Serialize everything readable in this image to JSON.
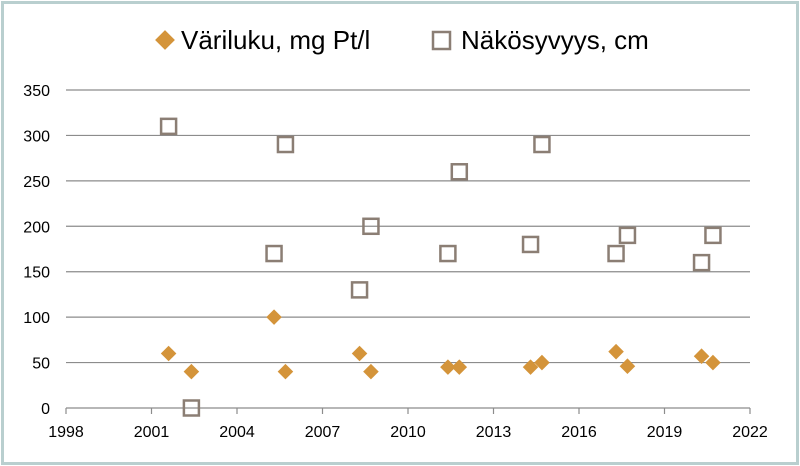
{
  "chart_data": {
    "type": "scatter",
    "title": "",
    "xlabel": "",
    "ylabel": "",
    "xlim": [
      1998,
      2022
    ],
    "ylim": [
      0,
      350
    ],
    "x_ticks": [
      "1998",
      "2001",
      "2004",
      "2007",
      "2010",
      "2013",
      "2016",
      "2019",
      "2022"
    ],
    "y_ticks": [
      "0",
      "50",
      "100",
      "150",
      "200",
      "250",
      "300",
      "350"
    ],
    "grid": "horizontal",
    "legend_position": "top",
    "series": [
      {
        "name": "Väriluku, mg Pt/l",
        "marker": "diamond",
        "color": "#d4943a",
        "points": [
          {
            "x": 2001.6,
            "y": 60
          },
          {
            "x": 2002.4,
            "y": 40
          },
          {
            "x": 2005.3,
            "y": 100
          },
          {
            "x": 2005.7,
            "y": 40
          },
          {
            "x": 2008.3,
            "y": 60
          },
          {
            "x": 2008.7,
            "y": 40
          },
          {
            "x": 2011.4,
            "y": 45
          },
          {
            "x": 2011.8,
            "y": 45
          },
          {
            "x": 2014.3,
            "y": 45
          },
          {
            "x": 2014.7,
            "y": 50
          },
          {
            "x": 2017.3,
            "y": 62
          },
          {
            "x": 2017.7,
            "y": 46
          },
          {
            "x": 2020.3,
            "y": 57
          },
          {
            "x": 2020.7,
            "y": 50
          }
        ]
      },
      {
        "name": "Näkösyvyys, cm",
        "marker": "square-open",
        "color": "#8b7e74",
        "points": [
          {
            "x": 2001.6,
            "y": 310
          },
          {
            "x": 2002.4,
            "y": 0
          },
          {
            "x": 2005.3,
            "y": 170
          },
          {
            "x": 2005.7,
            "y": 290
          },
          {
            "x": 2008.3,
            "y": 130
          },
          {
            "x": 2008.7,
            "y": 200
          },
          {
            "x": 2011.4,
            "y": 170
          },
          {
            "x": 2011.8,
            "y": 260
          },
          {
            "x": 2014.3,
            "y": 180
          },
          {
            "x": 2014.7,
            "y": 290
          },
          {
            "x": 2017.3,
            "y": 170
          },
          {
            "x": 2017.7,
            "y": 190
          },
          {
            "x": 2020.3,
            "y": 160
          },
          {
            "x": 2020.7,
            "y": 190
          }
        ]
      }
    ]
  }
}
